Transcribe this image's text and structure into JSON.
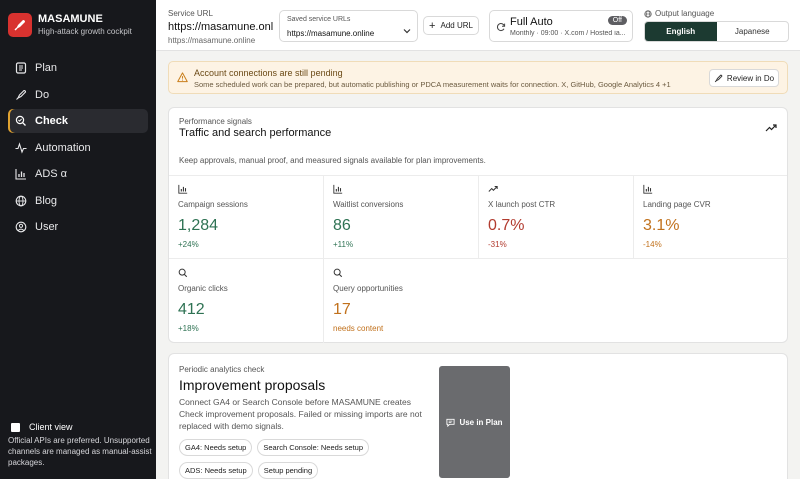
{
  "brand": {
    "name": "MASAMUNE",
    "tagline": "High-attack growth cockpit"
  },
  "nav": [
    {
      "label": "Plan",
      "icon": "list-icon",
      "active": false
    },
    {
      "label": "Do",
      "icon": "rocket-icon",
      "active": false
    },
    {
      "label": "Check",
      "icon": "search-check-icon",
      "active": true
    },
    {
      "label": "Automation",
      "icon": "pulse-icon",
      "active": false
    },
    {
      "label": "ADS α",
      "icon": "bar-chart-icon",
      "active": false
    },
    {
      "label": "Blog",
      "icon": "globe-icon",
      "active": false
    },
    {
      "label": "User",
      "icon": "user-circle-icon",
      "active": false
    }
  ],
  "client": {
    "label": "Client view",
    "note": "Official APIs are preferred. Unsupported channels are managed as manual-assist packages."
  },
  "header": {
    "service_label": "Service URL",
    "service_url": "https://masamune.onl...",
    "service_sub": "https://masamune.online",
    "saved_label": "Saved service URLs",
    "saved_value": "https://masamune.online",
    "add_url": "Add URL",
    "auto_title": "Full Auto",
    "auto_toggle": "Off",
    "auto_sub": "Monthly · 09:00 · X.com / Hosted ia...",
    "lang_label": "Output language",
    "lang_en": "English",
    "lang_ja": "Japanese"
  },
  "alert": {
    "title": "Account connections are still pending",
    "sub": "Some scheduled work can be prepared, but automatic publishing or PDCA measurement waits for connection. X, GitHub, Google Analytics 4 +1",
    "button": "Review in Do"
  },
  "performance": {
    "kicker": "Performance signals",
    "title": "Traffic and search performance",
    "desc": "Keep approvals, manual proof, and measured signals available for plan improvements.",
    "metrics": [
      {
        "label": "Campaign sessions",
        "value": "1,284",
        "delta": "+24%",
        "tone": "green",
        "icon": "bar-chart-icon"
      },
      {
        "label": "Waitlist conversions",
        "value": "86",
        "delta": "+11%",
        "tone": "green",
        "icon": "bar-chart-icon"
      },
      {
        "label": "X launch post CTR",
        "value": "0.7%",
        "delta": "-31%",
        "tone": "red",
        "icon": "trend-up-icon"
      },
      {
        "label": "Landing page CVR",
        "value": "3.1%",
        "delta": "-14%",
        "tone": "orange",
        "icon": "bar-chart-icon"
      },
      {
        "label": "Organic clicks",
        "value": "412",
        "delta": "+18%",
        "tone": "green",
        "icon": "search-icon"
      },
      {
        "label": "Query opportunities",
        "value": "17",
        "delta": "needs content",
        "tone": "orange",
        "icon": "search-icon"
      }
    ]
  },
  "improvement": {
    "kicker": "Periodic analytics check",
    "title": "Improvement proposals",
    "desc": "Connect GA4 or Search Console before MASAMUNE creates Check improvement proposals. Failed or missing imports are not replaced with demo signals.",
    "chips": [
      "GA4: Needs setup",
      "Search Console: Needs setup",
      "ADS: Needs setup",
      "Setup pending"
    ],
    "use_button": "Use in Plan"
  },
  "colors": {
    "accent": "#1c3a31",
    "brand": "#d8322f",
    "active_bar": "#e0a230",
    "green": "#2e7253",
    "red": "#b23b2f",
    "orange": "#c1711c"
  }
}
